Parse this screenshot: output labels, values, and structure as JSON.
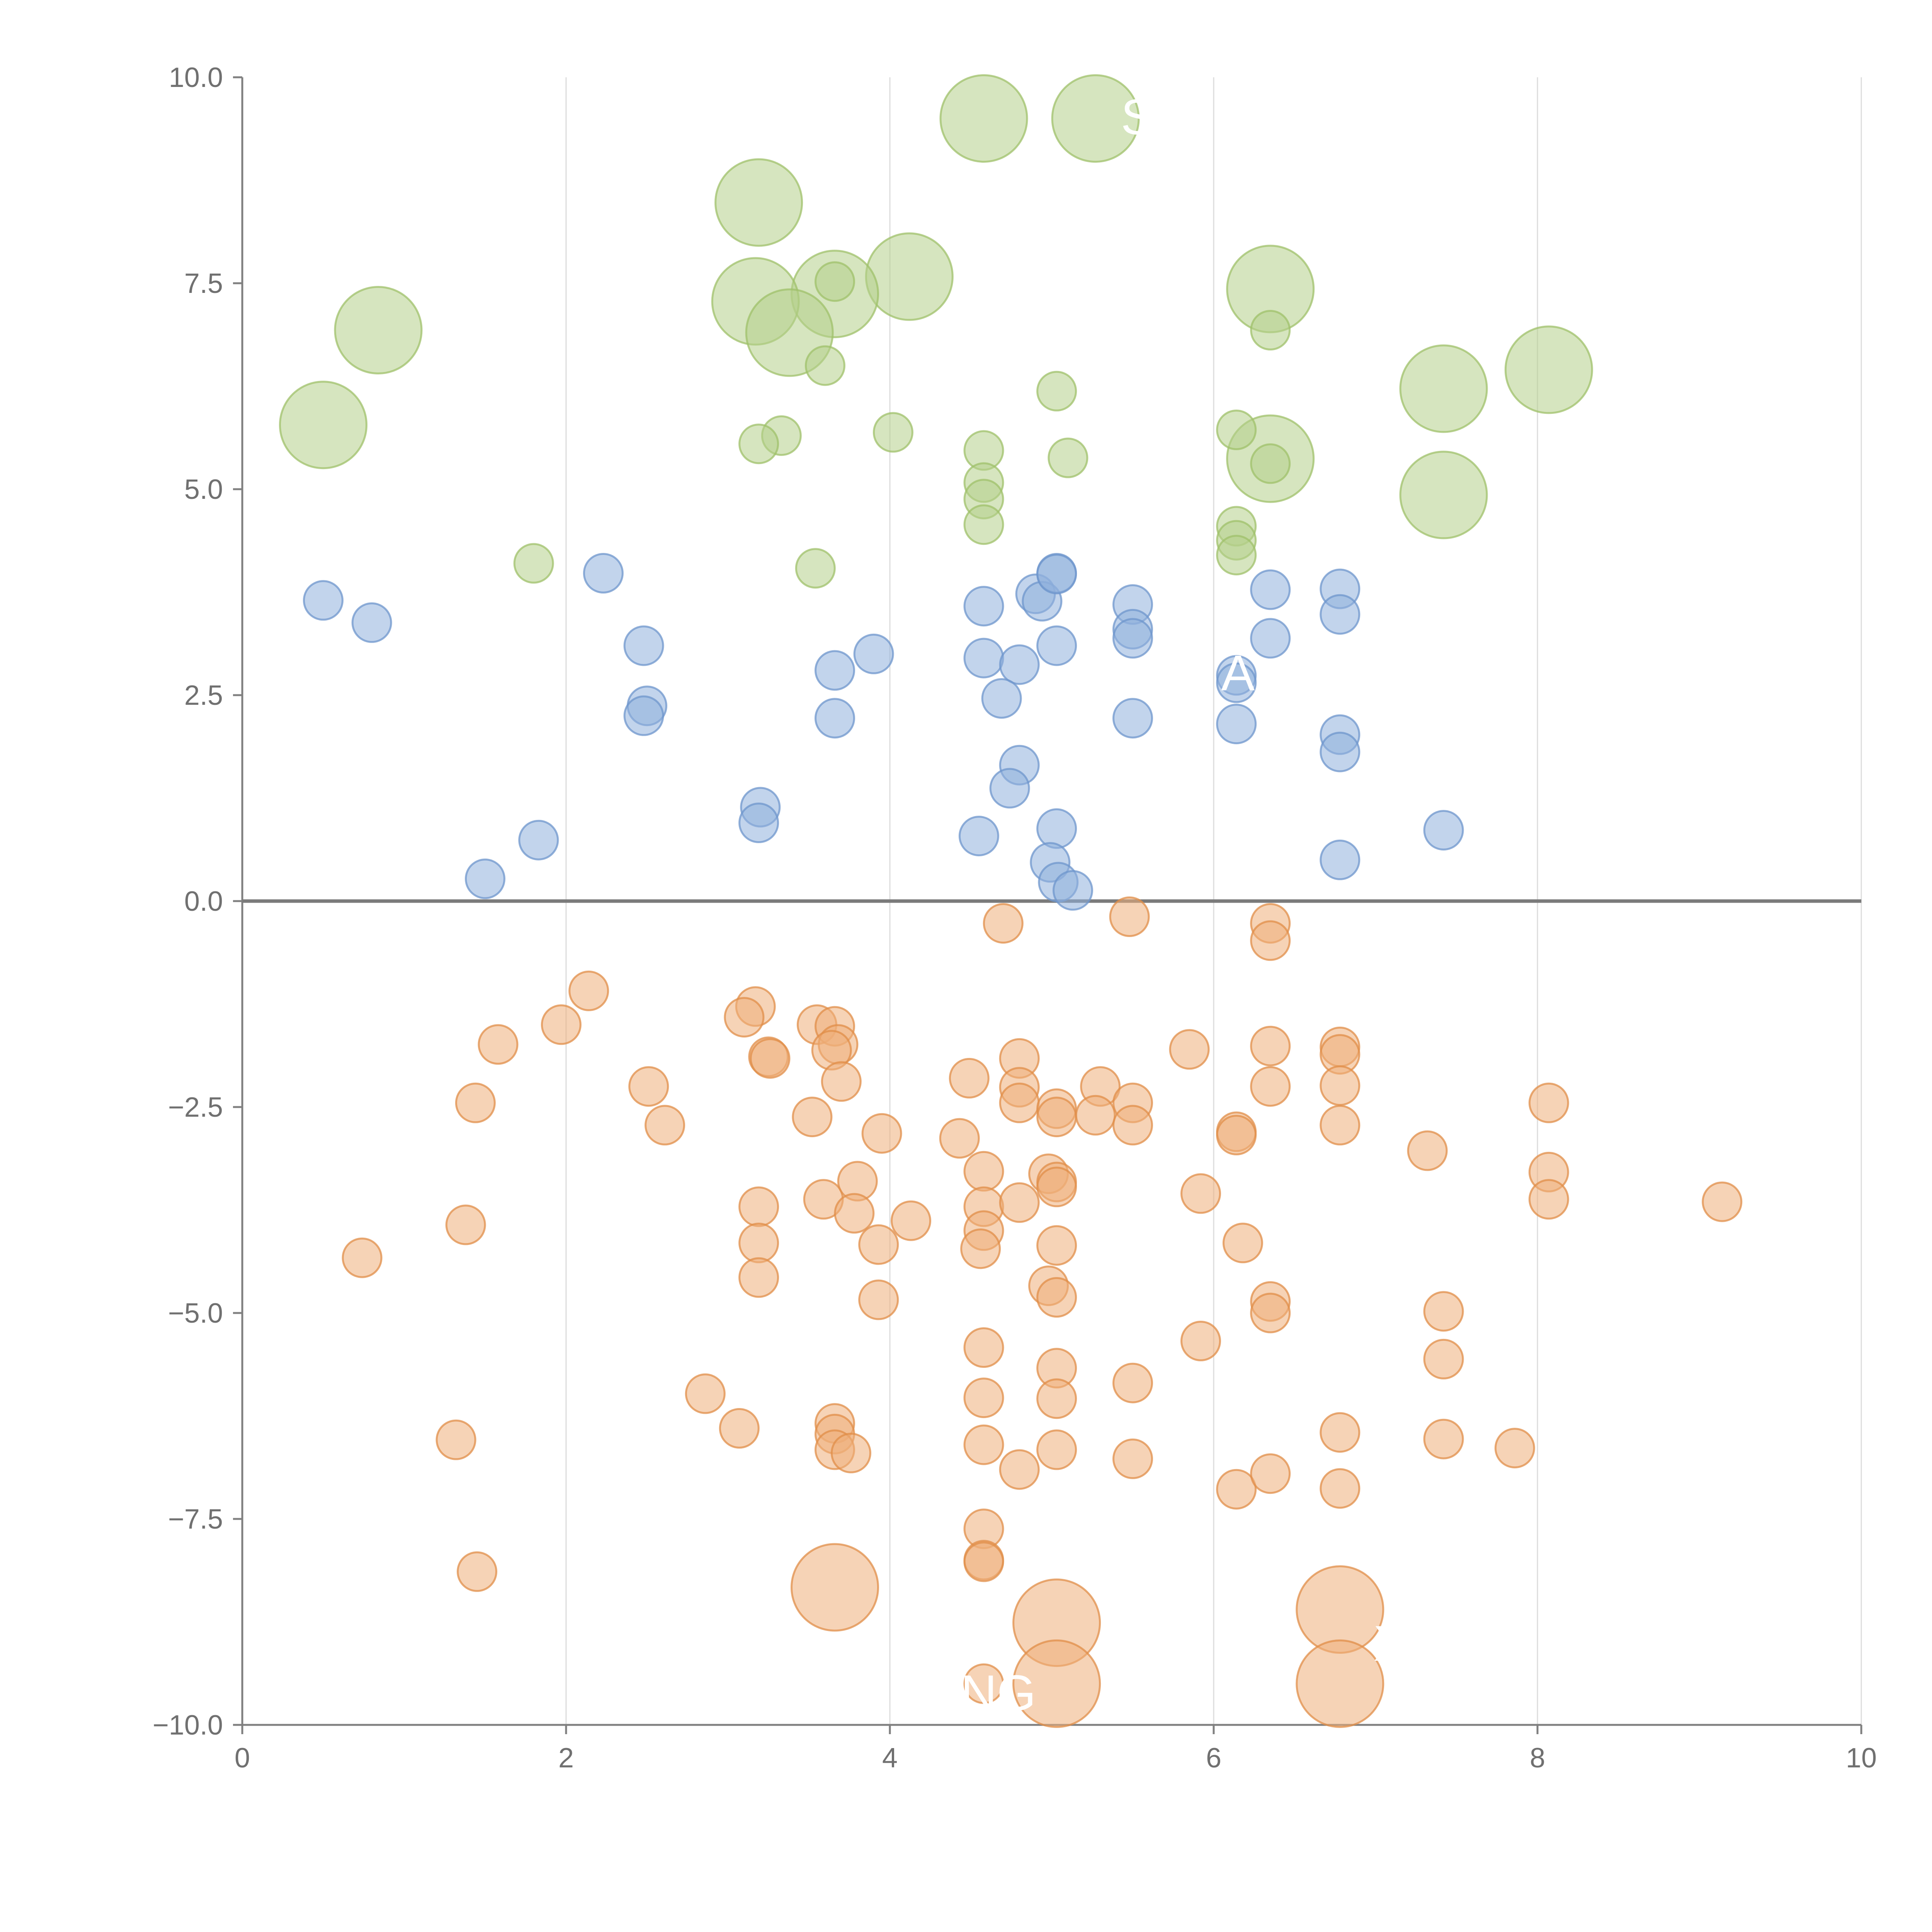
{
  "chart_data": {
    "type": "scatter",
    "xlim": [
      0,
      10
    ],
    "ylim": [
      -10,
      10
    ],
    "x_ticks": [
      {
        "value": 0,
        "label": "0"
      },
      {
        "value": 2,
        "label": "2"
      },
      {
        "value": 4,
        "label": "4"
      },
      {
        "value": 6,
        "label": "6"
      },
      {
        "value": 8,
        "label": "8"
      },
      {
        "value": 10,
        "label": "10"
      }
    ],
    "y_ticks": [
      {
        "value": 10,
        "label": "10.0"
      },
      {
        "value": 7.5,
        "label": "7.5"
      },
      {
        "value": 5,
        "label": "5.0"
      },
      {
        "value": 2.5,
        "label": "2.5"
      },
      {
        "value": 0,
        "label": "0.0"
      },
      {
        "value": -2.5,
        "label": "−2.5"
      },
      {
        "value": -5,
        "label": "−5.0"
      },
      {
        "value": -7.5,
        "label": "−7.5"
      },
      {
        "value": -10,
        "label": "−10.0"
      }
    ],
    "grid": "vertical",
    "zero_line": true,
    "colors": {
      "green_fill": "#b5d08a",
      "green_stroke": "#9fc06a",
      "blue_fill": "#8fb0dc",
      "blue_stroke": "#6e96cc",
      "orange_fill": "#eeae7a",
      "orange_stroke": "#e08d48"
    },
    "series": [
      {
        "color": "green",
        "points": [
          [
            4.58,
            9.5,
            "L"
          ],
          [
            5.27,
            9.5,
            "L"
          ],
          [
            3.19,
            8.48,
            "L"
          ],
          [
            4.12,
            7.58,
            "L"
          ],
          [
            3.66,
            7.37,
            "L"
          ],
          [
            3.17,
            7.28,
            "L"
          ],
          [
            6.35,
            7.43,
            "L"
          ],
          [
            0.84,
            6.93,
            "L"
          ],
          [
            3.38,
            6.9,
            "L"
          ],
          [
            8.07,
            6.45,
            "L"
          ],
          [
            7.42,
            6.22,
            "L"
          ],
          [
            0.5,
            5.78,
            "L"
          ],
          [
            6.35,
            5.37,
            "L"
          ],
          [
            7.42,
            4.93,
            "L"
          ],
          [
            3.66,
            7.52,
            "S"
          ],
          [
            6.35,
            6.93,
            "S"
          ],
          [
            3.6,
            6.5,
            "S"
          ],
          [
            5.03,
            6.19,
            "S"
          ],
          [
            4.02,
            5.69,
            "S"
          ],
          [
            3.33,
            5.65,
            "S"
          ],
          [
            3.19,
            5.55,
            "S"
          ],
          [
            6.14,
            5.72,
            "S"
          ],
          [
            4.58,
            5.47,
            "S"
          ],
          [
            5.1,
            5.38,
            "S"
          ],
          [
            6.35,
            5.31,
            "S"
          ],
          [
            4.58,
            5.08,
            "S"
          ],
          [
            4.58,
            4.88,
            "S"
          ],
          [
            4.58,
            4.57,
            "S"
          ],
          [
            6.14,
            4.55,
            "S"
          ],
          [
            6.14,
            4.38,
            "S"
          ],
          [
            6.14,
            4.2,
            "S"
          ],
          [
            1.8,
            4.1,
            "S"
          ],
          [
            3.54,
            4.04,
            "S"
          ]
        ]
      },
      {
        "color": "blue",
        "points": [
          [
            0.5,
            3.65,
            "S"
          ],
          [
            0.8,
            3.38,
            "S"
          ],
          [
            2.23,
            3.98,
            "S"
          ],
          [
            2.48,
            3.1,
            "S"
          ],
          [
            2.5,
            2.37,
            "S"
          ],
          [
            2.48,
            2.25,
            "S"
          ],
          [
            3.66,
            2.8,
            "S"
          ],
          [
            3.9,
            3.0,
            "S"
          ],
          [
            3.66,
            2.22,
            "S"
          ],
          [
            4.58,
            3.58,
            "S"
          ],
          [
            4.58,
            2.95,
            "S"
          ],
          [
            4.8,
            2.87,
            "S"
          ],
          [
            4.69,
            2.46,
            "S"
          ],
          [
            4.9,
            3.73,
            "S"
          ],
          [
            4.94,
            3.64,
            "S"
          ],
          [
            5.03,
            3.98,
            "S"
          ],
          [
            5.03,
            3.97,
            "S"
          ],
          [
            5.03,
            3.1,
            "S"
          ],
          [
            5.5,
            3.6,
            "S"
          ],
          [
            5.5,
            3.3,
            "S"
          ],
          [
            5.5,
            3.19,
            "S"
          ],
          [
            5.5,
            2.22,
            "S"
          ],
          [
            6.14,
            2.74,
            "S"
          ],
          [
            6.14,
            2.65,
            "S"
          ],
          [
            6.14,
            2.15,
            "S"
          ],
          [
            6.35,
            3.78,
            "S"
          ],
          [
            6.35,
            3.19,
            "S"
          ],
          [
            6.78,
            3.79,
            "S"
          ],
          [
            6.78,
            3.48,
            "S"
          ],
          [
            6.78,
            2.02,
            "S"
          ],
          [
            6.78,
            1.81,
            "S"
          ],
          [
            6.78,
            0.5,
            "S"
          ],
          [
            7.42,
            0.86,
            "S"
          ],
          [
            1.5,
            0.27,
            "S"
          ],
          [
            1.83,
            0.74,
            "S"
          ],
          [
            3.2,
            1.14,
            "S"
          ],
          [
            3.19,
            0.95,
            "S"
          ],
          [
            4.8,
            1.65,
            "S"
          ],
          [
            4.74,
            1.37,
            "S"
          ],
          [
            4.55,
            0.79,
            "S"
          ],
          [
            5.03,
            0.88,
            "S"
          ],
          [
            4.99,
            0.47,
            "S"
          ],
          [
            5.04,
            0.23,
            "S"
          ],
          [
            5.13,
            0.13,
            "S"
          ]
        ]
      },
      {
        "color": "orange",
        "points": [
          [
            4.7,
            -0.27,
            "S"
          ],
          [
            5.48,
            -0.19,
            "S"
          ],
          [
            6.35,
            -0.27,
            "S"
          ],
          [
            6.35,
            -0.48,
            "S"
          ],
          [
            2.14,
            -1.09,
            "S"
          ],
          [
            1.97,
            -1.5,
            "S"
          ],
          [
            1.58,
            -1.74,
            "S"
          ],
          [
            1.44,
            -2.45,
            "S"
          ],
          [
            2.51,
            -2.25,
            "S"
          ],
          [
            2.61,
            -2.72,
            "S"
          ],
          [
            3.17,
            -1.28,
            "S"
          ],
          [
            3.1,
            -1.41,
            "S"
          ],
          [
            3.25,
            -1.89,
            "S"
          ],
          [
            3.26,
            -1.91,
            "S"
          ],
          [
            3.55,
            -1.5,
            "S"
          ],
          [
            3.66,
            -1.52,
            "S"
          ],
          [
            3.68,
            -1.74,
            "S"
          ],
          [
            3.64,
            -1.81,
            "S"
          ],
          [
            3.7,
            -2.19,
            "S"
          ],
          [
            3.52,
            -2.62,
            "S"
          ],
          [
            3.95,
            -2.82,
            "S"
          ],
          [
            4.49,
            -2.15,
            "S"
          ],
          [
            4.43,
            -2.88,
            "S"
          ],
          [
            4.8,
            -1.91,
            "S"
          ],
          [
            4.8,
            -2.26,
            "S"
          ],
          [
            4.8,
            -2.45,
            "S"
          ],
          [
            5.03,
            -2.52,
            "S"
          ],
          [
            5.03,
            -2.62,
            "S"
          ],
          [
            5.3,
            -2.25,
            "S"
          ],
          [
            5.27,
            -2.6,
            "S"
          ],
          [
            5.5,
            -2.45,
            "S"
          ],
          [
            5.5,
            -2.72,
            "S"
          ],
          [
            5.85,
            -1.8,
            "S"
          ],
          [
            6.14,
            -2.8,
            "S"
          ],
          [
            6.14,
            -2.84,
            "S"
          ],
          [
            6.35,
            -1.76,
            "S"
          ],
          [
            6.35,
            -2.25,
            "S"
          ],
          [
            6.78,
            -1.77,
            "S"
          ],
          [
            6.78,
            -1.86,
            "S"
          ],
          [
            6.78,
            -2.24,
            "S"
          ],
          [
            6.78,
            -2.72,
            "S"
          ],
          [
            7.32,
            -3.03,
            "S"
          ],
          [
            8.07,
            -2.45,
            "S"
          ],
          [
            8.07,
            -3.29,
            "S"
          ],
          [
            8.07,
            -3.62,
            "S"
          ],
          [
            9.14,
            -3.65,
            "S"
          ],
          [
            0.74,
            -4.33,
            "S"
          ],
          [
            1.38,
            -3.93,
            "S"
          ],
          [
            3.19,
            -3.71,
            "S"
          ],
          [
            3.19,
            -4.15,
            "S"
          ],
          [
            3.19,
            -4.57,
            "S"
          ],
          [
            3.59,
            -3.62,
            "S"
          ],
          [
            3.8,
            -3.4,
            "S"
          ],
          [
            3.78,
            -3.79,
            "S"
          ],
          [
            3.93,
            -4.17,
            "S"
          ],
          [
            4.13,
            -3.88,
            "S"
          ],
          [
            3.93,
            -4.84,
            "S"
          ],
          [
            4.58,
            -3.28,
            "S"
          ],
          [
            4.58,
            -3.71,
            "S"
          ],
          [
            4.58,
            -4.0,
            "S"
          ],
          [
            4.56,
            -4.22,
            "S"
          ],
          [
            4.8,
            -3.66,
            "S"
          ],
          [
            4.98,
            -3.31,
            "S"
          ],
          [
            5.03,
            -3.41,
            "S"
          ],
          [
            5.03,
            -3.47,
            "S"
          ],
          [
            5.03,
            -4.18,
            "S"
          ],
          [
            4.98,
            -4.67,
            "S"
          ],
          [
            5.03,
            -4.81,
            "S"
          ],
          [
            5.92,
            -3.55,
            "S"
          ],
          [
            6.18,
            -4.15,
            "S"
          ],
          [
            6.35,
            -4.86,
            "S"
          ],
          [
            6.35,
            -5.0,
            "S"
          ],
          [
            7.42,
            -4.98,
            "S"
          ],
          [
            7.42,
            -5.56,
            "S"
          ],
          [
            5.92,
            -5.34,
            "S"
          ],
          [
            4.58,
            -5.42,
            "S"
          ],
          [
            5.03,
            -5.67,
            "S"
          ],
          [
            5.03,
            -6.04,
            "S"
          ],
          [
            5.5,
            -5.85,
            "S"
          ],
          [
            4.58,
            -6.03,
            "S"
          ],
          [
            4.58,
            -6.6,
            "S"
          ],
          [
            4.8,
            -6.9,
            "S"
          ],
          [
            5.03,
            -6.66,
            "S"
          ],
          [
            5.5,
            -6.77,
            "S"
          ],
          [
            2.86,
            -5.98,
            "S"
          ],
          [
            3.07,
            -6.4,
            "S"
          ],
          [
            1.32,
            -6.54,
            "S"
          ],
          [
            3.66,
            -6.34,
            "S"
          ],
          [
            3.66,
            -6.47,
            "S"
          ],
          [
            3.66,
            -6.66,
            "S"
          ],
          [
            3.76,
            -6.7,
            "S"
          ],
          [
            6.14,
            -7.14,
            "S"
          ],
          [
            6.35,
            -6.95,
            "S"
          ],
          [
            6.78,
            -6.45,
            "S"
          ],
          [
            6.78,
            -7.13,
            "S"
          ],
          [
            7.42,
            -6.53,
            "S"
          ],
          [
            7.86,
            -6.64,
            "S"
          ],
          [
            1.45,
            -8.14,
            "S"
          ],
          [
            4.58,
            -7.62,
            "S"
          ],
          [
            4.58,
            -8.0,
            "S"
          ],
          [
            4.58,
            -8.02,
            "S"
          ],
          [
            4.58,
            -9.5,
            "S"
          ],
          [
            3.66,
            -8.33,
            "L"
          ],
          [
            5.03,
            -8.76,
            "L"
          ],
          [
            5.03,
            -9.5,
            "L"
          ],
          [
            6.78,
            -8.6,
            "L"
          ],
          [
            6.78,
            -9.5,
            "L"
          ]
        ]
      }
    ],
    "annotations": [
      {
        "text": "S",
        "x": 5.53,
        "y": 9.47
      },
      {
        "text": "A",
        "x": 6.15,
        "y": 2.72
      },
      {
        "text": "X",
        "x": 7.09,
        "y": -9.06
      },
      {
        "text": "NG",
        "x": 4.67,
        "y": -9.66
      }
    ]
  }
}
